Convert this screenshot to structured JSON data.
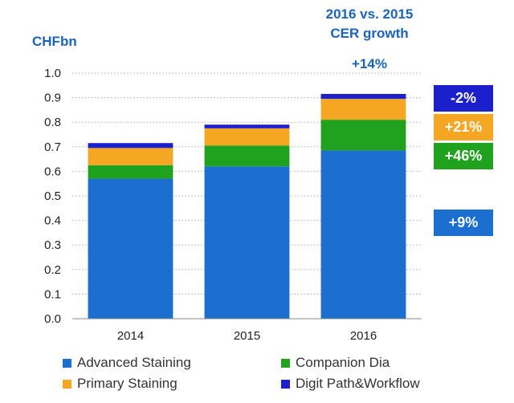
{
  "chart_data": {
    "type": "bar",
    "stacked": true,
    "unit_label": "CHFbn",
    "categories": [
      "2014",
      "2015",
      "2016"
    ],
    "series": [
      {
        "name": "Advanced Staining",
        "color": "#1a6fd0",
        "values": [
          0.57,
          0.62,
          0.685
        ]
      },
      {
        "name": "Companion Dia",
        "color": "#21a21e",
        "values": [
          0.055,
          0.085,
          0.125
        ]
      },
      {
        "name": "Primary Staining",
        "color": "#f5a623",
        "values": [
          0.07,
          0.07,
          0.085
        ]
      },
      {
        "name": "Digit Path&Workflow",
        "color": "#1c1fcc",
        "values": [
          0.02,
          0.015,
          0.02
        ]
      }
    ],
    "ylim": [
      0,
      1.0
    ],
    "yticks": [
      "0.0",
      "0.1",
      "0.2",
      "0.3",
      "0.4",
      "0.5",
      "0.6",
      "0.7",
      "0.8",
      "0.9",
      "1.0"
    ],
    "grid": true,
    "legend_position": "bottom"
  },
  "growth": {
    "title_line1": "2016 vs. 2015",
    "title_line2": "CER growth",
    "total": "+14%",
    "badges": [
      {
        "label": "-2%",
        "color": "#1c1fcc",
        "series": "Digit Path&Workflow"
      },
      {
        "label": "+21%",
        "color": "#f5a623",
        "series": "Primary Staining"
      },
      {
        "label": "+46%",
        "color": "#21a21e",
        "series": "Companion Dia"
      },
      {
        "label": "+9%",
        "color": "#1a6fd0",
        "series": "Advanced Staining"
      }
    ]
  },
  "legend": {
    "items": [
      {
        "label": "Advanced Staining",
        "color": "#1a6fd0"
      },
      {
        "label": "Companion Dia",
        "color": "#21a21e"
      },
      {
        "label": "Primary Staining",
        "color": "#f5a623"
      },
      {
        "label": "Digit Path&Workflow",
        "color": "#1c1fcc"
      }
    ]
  }
}
